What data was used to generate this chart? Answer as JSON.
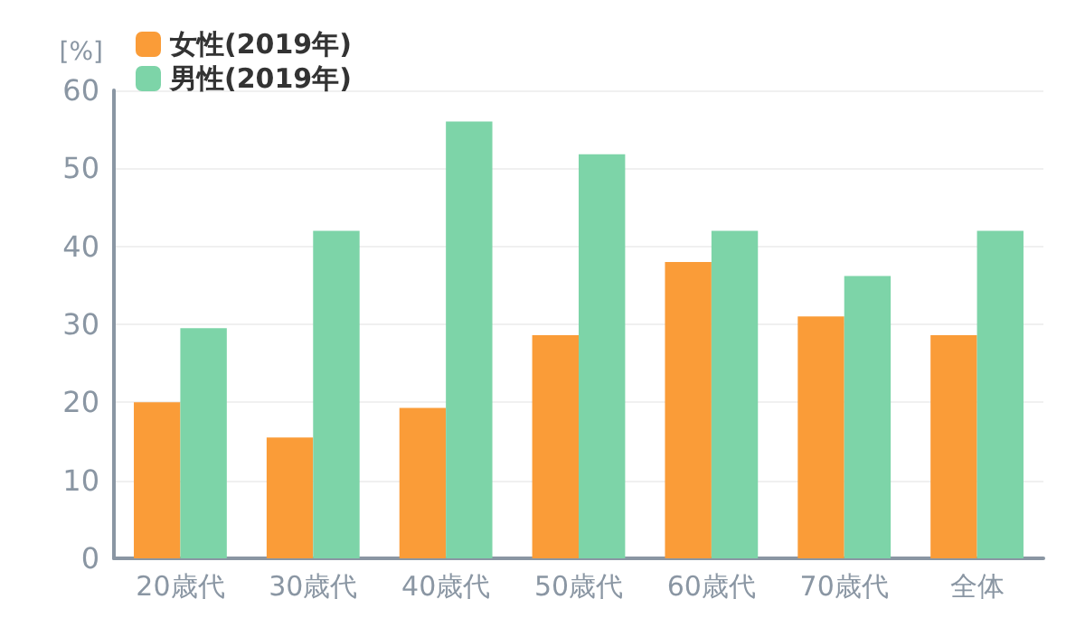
{
  "chart_data": {
    "type": "bar",
    "ylabel": "[%]",
    "categories": [
      "20歳代",
      "30歳代",
      "40歳代",
      "50歳代",
      "60歳代",
      "70歳代",
      "全体"
    ],
    "series": [
      {
        "name": "女性(2019年)",
        "color": "#fa9c38",
        "values": [
          20,
          15.5,
          19.3,
          28.6,
          38,
          31,
          28.6
        ]
      },
      {
        "name": "男性(2019年)",
        "color": "#7dd4a8",
        "values": [
          29.5,
          42,
          56,
          51.8,
          42,
          36.2,
          42
        ]
      }
    ],
    "ylim": [
      0,
      60
    ],
    "yticks": [
      0,
      10,
      20,
      30,
      40,
      50,
      60
    ],
    "grid": "y",
    "legend": "top left"
  }
}
